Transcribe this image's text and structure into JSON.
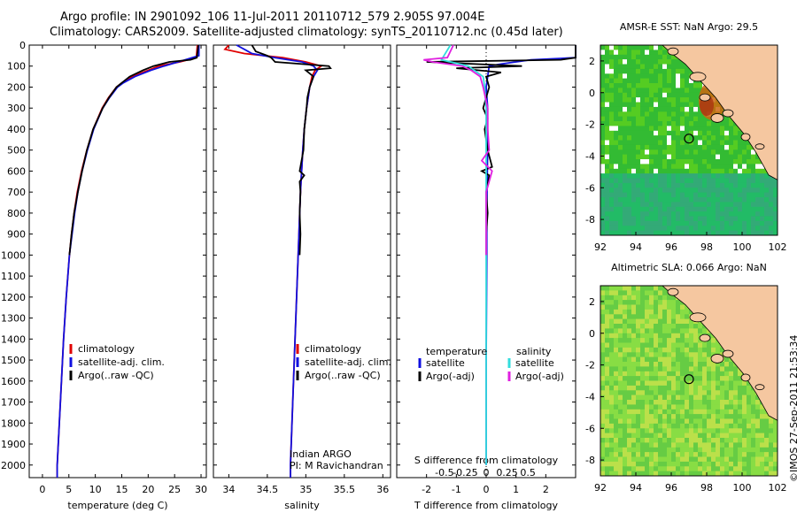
{
  "header": {
    "title_line1": "Argo profile: IN 2901092_106 11-Jul-2011 20110712_579 2.905S 97.004E",
    "title_line2": "Climatology: CARS2009. Satellite-adjusted climatology: synTS_20110712.nc (0.45d later)"
  },
  "credit": "©IMOS 27-Sep-2011 21:53:34",
  "colors": {
    "climatology": "#e00000",
    "satellite": "#1010e0",
    "argo": "#000000",
    "satellite_s": "#33dddd",
    "argo_s": "#e020e0",
    "land": "#f5c7a0",
    "sea_bg": "#ffffff"
  },
  "chart_data": [
    {
      "type": "line",
      "title": "",
      "xlabel": "temperature (deg C)",
      "ylabel": "",
      "xlim": [
        -2.5,
        31
      ],
      "ylim": [
        2060,
        0
      ],
      "xticks": [
        "0",
        "5",
        "10",
        "15",
        "20",
        "25",
        "30"
      ],
      "yticks": [
        "0",
        "100",
        "200",
        "300",
        "400",
        "500",
        "600",
        "700",
        "800",
        "900",
        "1000",
        "1100",
        "1200",
        "1300",
        "1400",
        "1500",
        "1600",
        "1700",
        "1800",
        "1900",
        "2000"
      ],
      "legend": [
        "climatology",
        "satellite-adj. clim.",
        "Argo(..raw -QC)"
      ],
      "series": [
        {
          "name": "climatology",
          "depth": [
            0,
            60,
            80,
            100,
            120,
            150,
            180,
            200,
            250,
            300,
            400,
            500,
            600,
            700,
            800,
            900,
            1000,
            1200,
            1400,
            1600,
            1800,
            2000,
            2060
          ],
          "values": [
            29.3,
            29.1,
            26,
            22,
            20,
            17,
            15,
            14,
            12.5,
            11.3,
            9.6,
            8.4,
            7.4,
            6.6,
            6.0,
            5.5,
            5.1,
            4.5,
            4.0,
            3.6,
            3.2,
            2.8,
            2.8
          ]
        },
        {
          "name": "satellite-adj. clim.",
          "depth": [
            0,
            50,
            70,
            100,
            120,
            150,
            180,
            200,
            250,
            300,
            400,
            500,
            600,
            700,
            800,
            900,
            1000,
            1200,
            1400,
            1600,
            1800,
            2000,
            2060
          ],
          "values": [
            29.6,
            29.6,
            27,
            23,
            20.5,
            17.5,
            15.3,
            14.2,
            12.7,
            11.4,
            9.7,
            8.5,
            7.5,
            6.7,
            6.1,
            5.6,
            5.1,
            4.5,
            4.0,
            3.6,
            3.2,
            2.8,
            2.8
          ]
        },
        {
          "name": "Argo(..raw -QC)",
          "depth": [
            0,
            60,
            70,
            80,
            100,
            120,
            150,
            180,
            200,
            250,
            300,
            400,
            500,
            600,
            700,
            800,
            900,
            1000
          ],
          "values": [
            29.5,
            29.2,
            28,
            24,
            21,
            19,
            16.5,
            15,
            14,
            12.6,
            11.4,
            9.6,
            8.4,
            7.5,
            6.7,
            6.0,
            5.5,
            5.1
          ]
        }
      ]
    },
    {
      "type": "line",
      "title": "",
      "xlabel": "salinity",
      "ylabel": "",
      "xlim": [
        33.8,
        36.1
      ],
      "ylim": [
        2060,
        0
      ],
      "xticks": [
        "34",
        "34.5",
        "35",
        "35.5",
        "36"
      ],
      "legend": [
        "climatology",
        "satellite-adj. clim.",
        "Argo(..raw -QC)"
      ],
      "annotation": [
        "Indian ARGO",
        "PI: M Ravichandran"
      ],
      "series": [
        {
          "name": "climatology",
          "depth": [
            0,
            20,
            40,
            60,
            80,
            100,
            120,
            150,
            200,
            250,
            300,
            400,
            500,
            700,
            1000,
            1500,
            2000,
            2060
          ],
          "values": [
            34.0,
            33.95,
            34.2,
            34.7,
            35.0,
            35.2,
            35.12,
            35.08,
            35.05,
            35.03,
            35.01,
            34.98,
            34.96,
            34.93,
            34.9,
            34.85,
            34.8,
            34.8
          ]
        },
        {
          "name": "satellite-adj. clim.",
          "depth": [
            0,
            20,
            40,
            60,
            80,
            100,
            120,
            150,
            200,
            250,
            300,
            400,
            500,
            700,
            1000,
            1500,
            2000,
            2060
          ],
          "values": [
            34.1,
            34.2,
            34.3,
            34.6,
            34.95,
            35.1,
            35.15,
            35.1,
            35.05,
            35.03,
            35.01,
            34.98,
            34.96,
            34.93,
            34.9,
            34.85,
            34.8,
            34.8
          ]
        },
        {
          "name": "Argo(..raw -QC)",
          "depth": [
            0,
            30,
            50,
            60,
            80,
            100,
            110,
            120,
            150,
            200,
            250,
            300,
            400,
            500,
            600,
            620,
            650,
            700,
            800,
            900,
            1000
          ],
          "values": [
            34.3,
            34.35,
            34.5,
            34.55,
            34.6,
            35.3,
            35.32,
            35.0,
            35.1,
            35.05,
            35.02,
            35.01,
            34.98,
            34.97,
            34.92,
            34.98,
            34.92,
            34.93,
            34.92,
            34.93,
            34.92
          ]
        }
      ]
    },
    {
      "type": "line",
      "title": "",
      "xlabel": "T difference from climatology",
      "xlabel_top": "S difference from climatology",
      "xlim": [
        -3,
        3
      ],
      "ylim": [
        2060,
        0
      ],
      "xticks": [
        "-2",
        "-1",
        "0",
        "1",
        "2"
      ],
      "xticks_s": [
        "-0.5",
        "-0.25",
        "0",
        "0.25",
        "0.5"
      ],
      "legend_temperature": [
        "temperature",
        "satellite",
        "Argo(-adj)"
      ],
      "legend_salinity": [
        "salinity",
        "satellite",
        "Argo(-adj)"
      ],
      "series": [
        {
          "name": "T satellite",
          "depth": [
            0,
            60,
            70,
            90,
            100,
            150,
            200,
            300,
            400,
            500,
            600,
            800,
            1000,
            1500,
            2000
          ],
          "values": [
            3,
            3,
            1.5,
            0.5,
            0.1,
            0.05,
            0,
            0.05,
            0.05,
            0.05,
            0.04,
            0.02,
            0.02,
            0,
            0
          ]
        },
        {
          "name": "T Argo(-adj)",
          "depth": [
            0,
            60,
            70,
            80,
            100,
            110,
            130,
            150,
            200,
            250,
            300,
            350,
            400,
            500,
            580,
            600,
            620,
            700,
            800,
            900,
            1000
          ],
          "values": [
            3,
            3,
            2.5,
            -2,
            1.2,
            -1,
            0.5,
            0,
            0.1,
            0,
            -0.1,
            0.05,
            -0.05,
            0.05,
            0.2,
            -0.15,
            0.1,
            0,
            0.05,
            0,
            0
          ]
        },
        {
          "name": "S satellite",
          "depth": [
            0,
            70,
            100,
            150,
            200,
            300,
            500,
            1000,
            1500,
            2000
          ],
          "values": [
            -1.2,
            -1.5,
            -0.6,
            -0.1,
            -0.05,
            0,
            0,
            0,
            0,
            0
          ]
        },
        {
          "name": "S Argo(-adj)",
          "depth": [
            0,
            60,
            70,
            80,
            100,
            120,
            150,
            200,
            300,
            400,
            500,
            550,
            600,
            700,
            1000
          ],
          "values": [
            -1.1,
            -1.3,
            -2.1,
            -1.8,
            -0.8,
            -0.5,
            -0.2,
            -0.1,
            0.05,
            0.05,
            0.1,
            -0.15,
            0.2,
            0,
            0
          ]
        }
      ]
    }
  ],
  "maps": [
    {
      "title": "AMSR-E SST: NaN Argo: 29.5",
      "xticks": [
        "92",
        "94",
        "96",
        "98",
        "100",
        "102"
      ],
      "yticks": [
        "2",
        "0",
        "-2",
        "-4",
        "-6",
        "-8"
      ],
      "argo_lon": 97.0,
      "argo_lat": -2.9
    },
    {
      "title": "Altimetric SLA: 0.066 Argo: NaN",
      "xticks": [
        "92",
        "94",
        "96",
        "98",
        "100",
        "102"
      ],
      "yticks": [
        "2",
        "0",
        "-2",
        "-4",
        "-6",
        "-8"
      ],
      "argo_lon": 97.0,
      "argo_lat": -2.9
    }
  ]
}
